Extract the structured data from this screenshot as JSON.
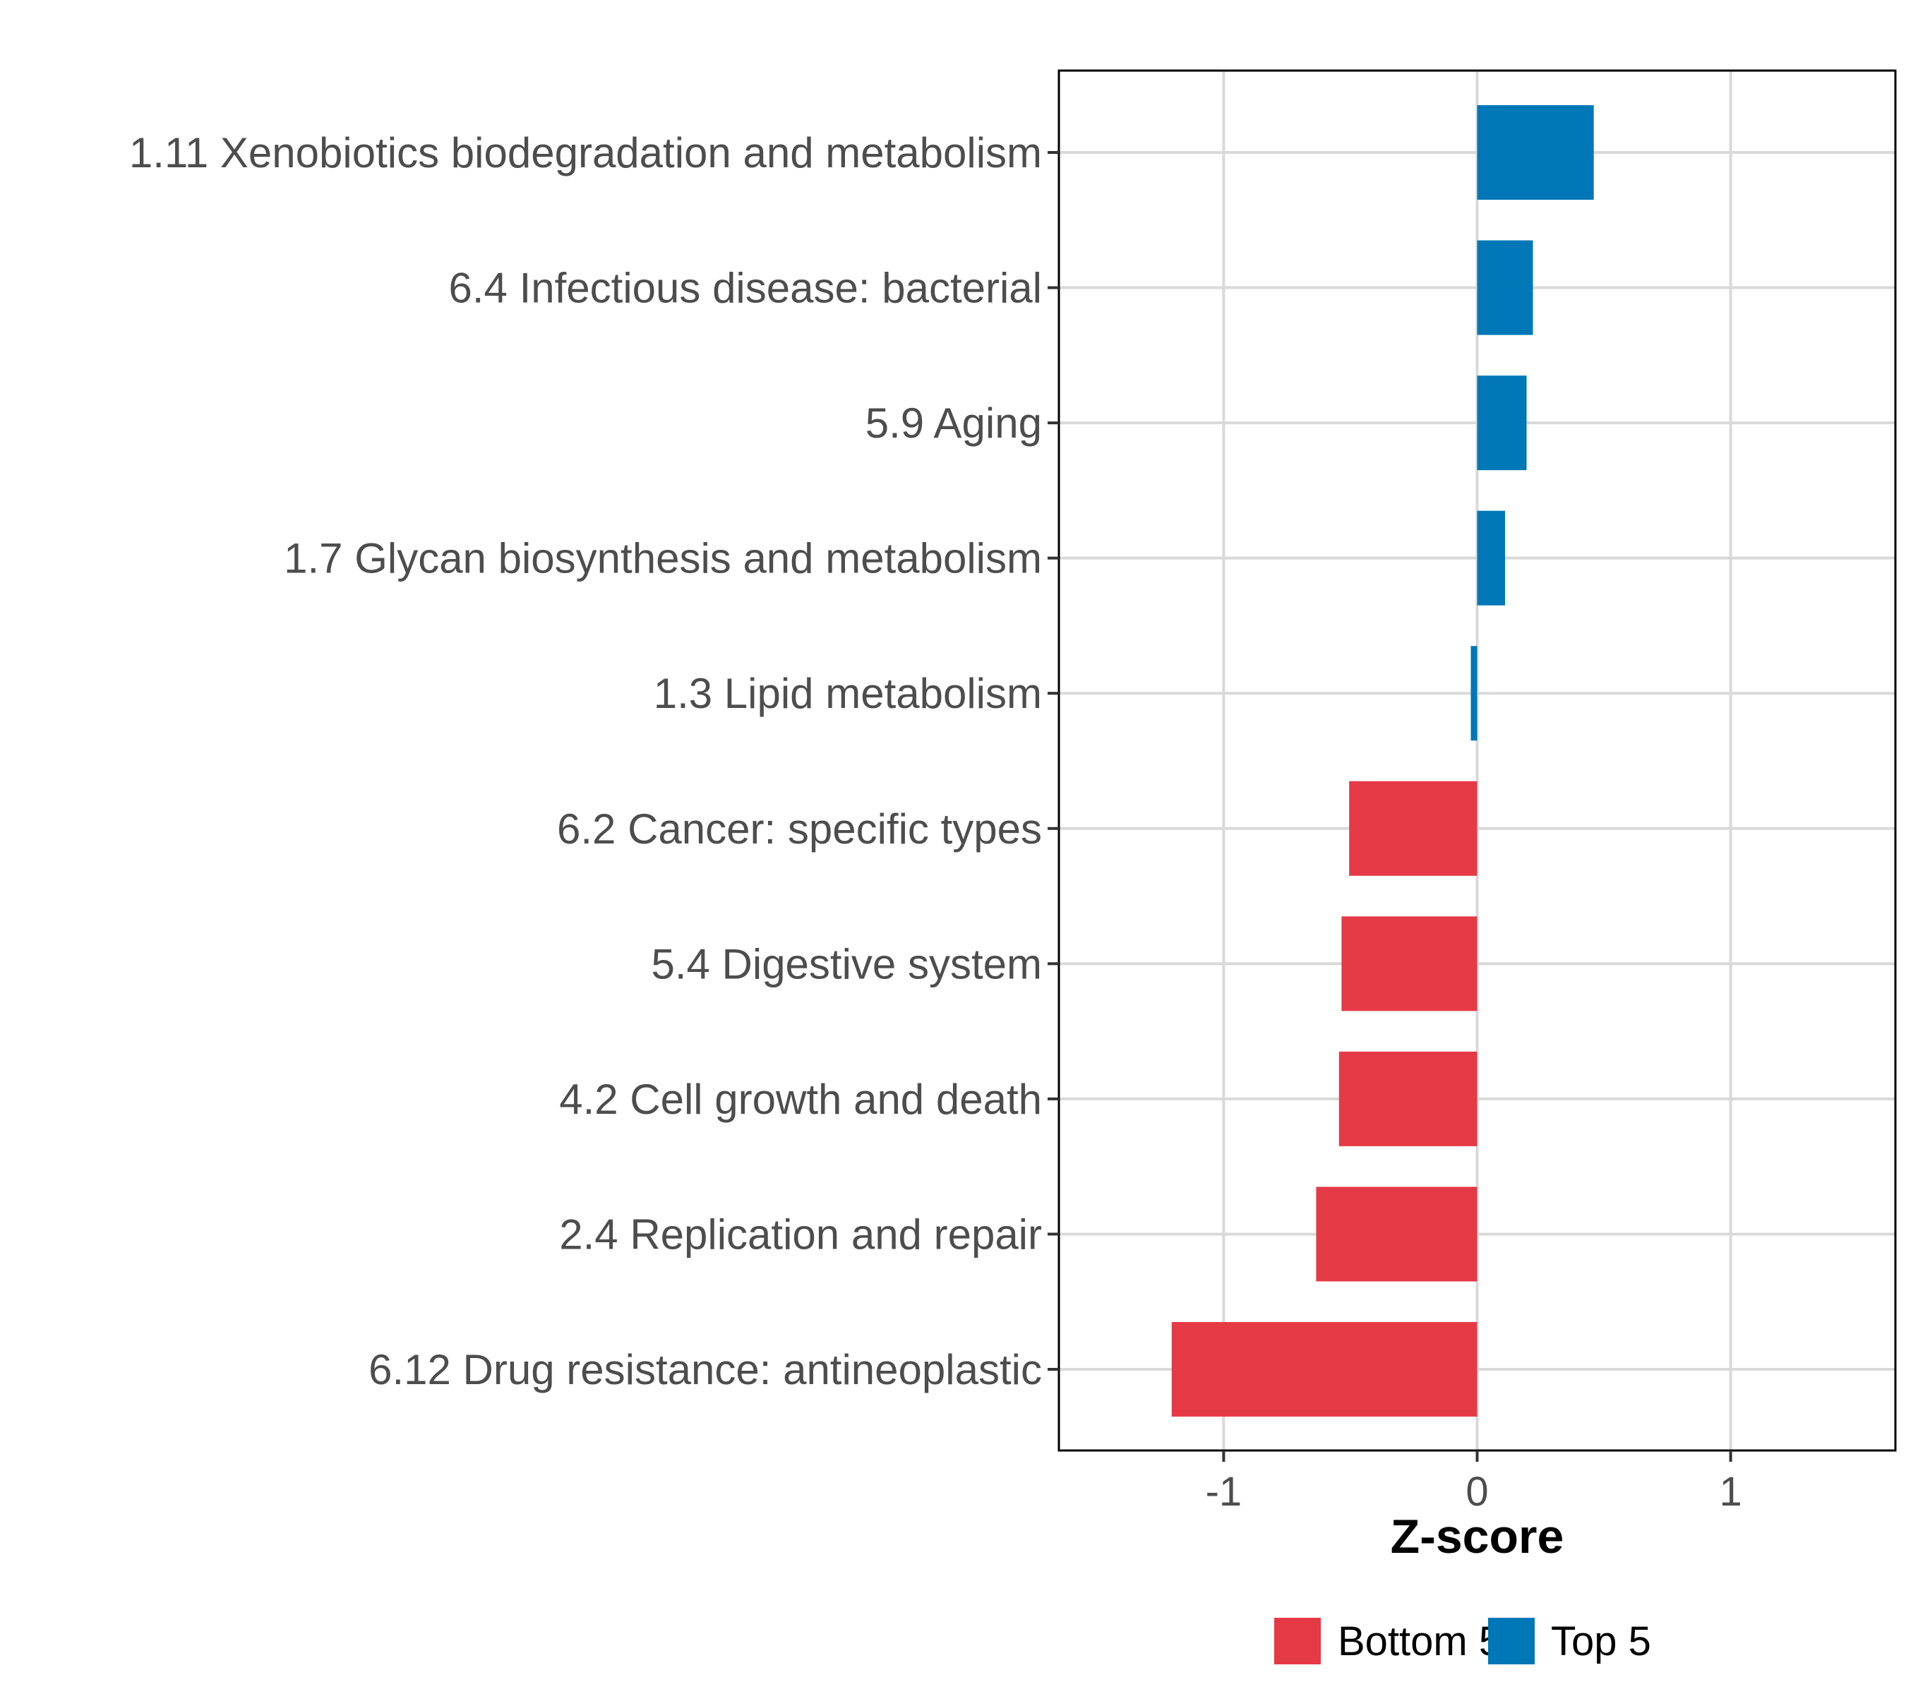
{
  "chart_data": {
    "type": "bar",
    "orientation": "horizontal",
    "title": "",
    "xlabel": "Z-score",
    "ylabel": "",
    "xlim": [
      -1.65,
      1.65
    ],
    "xticks": [
      -1,
      0,
      1
    ],
    "xtick_labels": [
      "-1",
      "0",
      "1"
    ],
    "grid": true,
    "legend_position": "bottom",
    "categories": [
      "1.11 Xenobiotics biodegradation and metabolism",
      "6.4 Infectious disease: bacterial",
      "5.9 Aging",
      "1.7 Glycan biosynthesis and metabolism",
      "1.3 Lipid metabolism",
      "6.2 Cancer: specific types",
      "5.4 Digestive system",
      "4.2 Cell growth and death",
      "2.4 Replication and repair",
      "6.12 Drug resistance: antineoplastic"
    ],
    "values": [
      0.46,
      0.22,
      0.195,
      0.11,
      -0.025,
      -0.505,
      -0.535,
      -0.545,
      -0.635,
      -1.205
    ],
    "groups": [
      "Top 5",
      "Top 5",
      "Top 5",
      "Top 5",
      "Top 5",
      "Bottom 5",
      "Bottom 5",
      "Bottom 5",
      "Bottom 5",
      "Bottom 5"
    ],
    "legend": [
      {
        "name": "Bottom 5",
        "color": "#e63946"
      },
      {
        "name": "Top 5",
        "color": "#0077b6"
      }
    ]
  }
}
